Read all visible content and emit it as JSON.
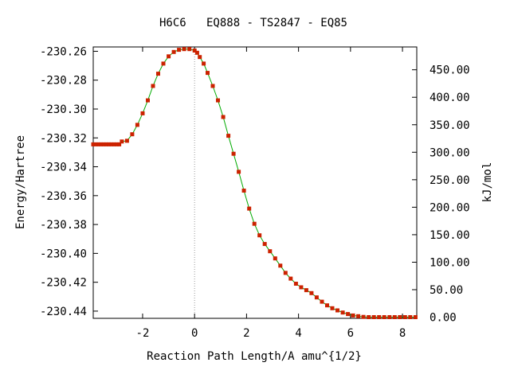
{
  "chart_data": {
    "type": "line",
    "title": "H6C6   EQ888 - TS2847 - EQ85",
    "xlabel": "Reaction Path Length/A amu^{1/2}",
    "ylabel": "Energy/Hartree",
    "y2label": "kJ/mol",
    "xlim": [
      -3.9,
      8.55
    ],
    "ylim": [
      -230.445,
      -230.257
    ],
    "y2lim": [
      -2.1,
      491.5
    ],
    "x_ticks": [
      -2,
      0,
      2,
      4,
      6,
      8
    ],
    "x_tick_labels": [
      "-2",
      "0",
      "2",
      "4",
      "6",
      "8"
    ],
    "y_ticks": [
      -230.26,
      -230.28,
      -230.3,
      -230.32,
      -230.34,
      -230.36,
      -230.38,
      -230.4,
      -230.42,
      -230.44
    ],
    "y_tick_labels": [
      "-230.26",
      "-230.28",
      "-230.30",
      "-230.32",
      "-230.34",
      "-230.36",
      "-230.38",
      "-230.40",
      "-230.42",
      "-230.44"
    ],
    "y2_ticks": [
      0,
      50,
      100,
      150,
      200,
      250,
      300,
      350,
      400,
      450
    ],
    "y2_tick_labels": [
      "0.00",
      "50.00",
      "100.00",
      "150.00",
      "200.00",
      "250.00",
      "300.00",
      "350.00",
      "400.00",
      "450.00"
    ],
    "ts_x": 0,
    "grid": false,
    "line_color": "#00aa00",
    "marker_color": "#cc2200",
    "ts_line_color": "#999999",
    "series": [
      {
        "x": [
          -3.9,
          -3.8,
          -3.7,
          -3.6,
          -3.5,
          -3.4,
          -3.3,
          -3.2,
          -3.1,
          -3.0,
          -2.9,
          -2.8,
          -2.6,
          -2.4,
          -2.2,
          -2.0,
          -1.8,
          -1.6,
          -1.4,
          -1.2,
          -1.0,
          -0.8,
          -0.6,
          -0.4,
          -0.2,
          0.0,
          0.1,
          0.2,
          0.35,
          0.5,
          0.7,
          0.9,
          1.1,
          1.3,
          1.5,
          1.7,
          1.9,
          2.1,
          2.3,
          2.5,
          2.7,
          2.9,
          3.1,
          3.3,
          3.5,
          3.7,
          3.9,
          4.1,
          4.3,
          4.5,
          4.7,
          4.9,
          5.1,
          5.3,
          5.5,
          5.7,
          5.9,
          6.1,
          6.3,
          6.5,
          6.7,
          6.9,
          7.1,
          7.3,
          7.5,
          7.7,
          7.9,
          8.1,
          8.3,
          8.5
        ],
        "y": [
          -230.3245,
          -230.3245,
          -230.3245,
          -230.3245,
          -230.3245,
          -230.3245,
          -230.3245,
          -230.3245,
          -230.3245,
          -230.3245,
          -230.3245,
          -230.3225,
          -230.322,
          -230.3175,
          -230.311,
          -230.303,
          -230.294,
          -230.284,
          -230.2755,
          -230.2685,
          -230.2635,
          -230.2605,
          -230.259,
          -230.2585,
          -230.2585,
          -230.2595,
          -230.261,
          -230.264,
          -230.2685,
          -230.275,
          -230.284,
          -230.294,
          -230.3055,
          -230.3185,
          -230.331,
          -230.3435,
          -230.3565,
          -230.369,
          -230.3795,
          -230.3875,
          -230.3935,
          -230.3985,
          -230.4035,
          -230.4085,
          -230.4135,
          -230.4175,
          -230.421,
          -230.4235,
          -230.4255,
          -230.4275,
          -230.4305,
          -230.4335,
          -230.436,
          -230.438,
          -230.4395,
          -230.441,
          -230.442,
          -230.443,
          -230.4435,
          -230.444,
          -230.4442,
          -230.4442,
          -230.4442,
          -230.4442,
          -230.4442,
          -230.4442,
          -230.4442,
          -230.4442,
          -230.4442,
          -230.4442
        ]
      }
    ]
  }
}
